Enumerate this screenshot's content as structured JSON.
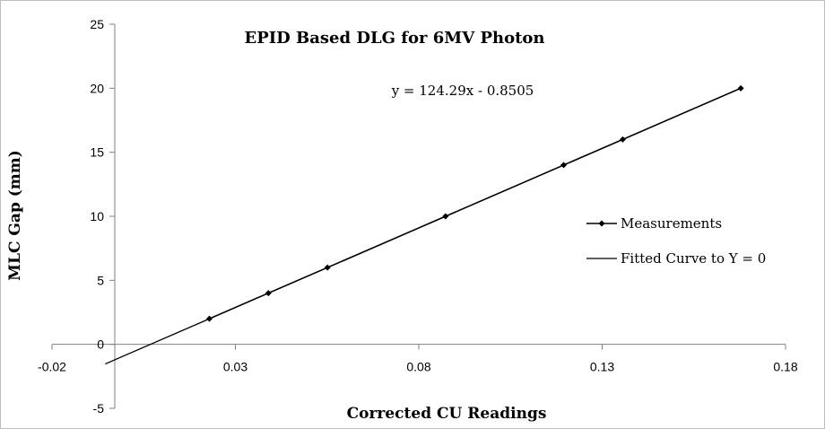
{
  "chart_data": {
    "type": "scatter",
    "title": "EPID Based DLG for 6MV Photon",
    "xlabel": "Corrected CU Readings",
    "ylabel": "MLC Gap (mm)",
    "xlim": [
      -0.02,
      0.18
    ],
    "ylim": [
      -5,
      25
    ],
    "x_ticks": [
      "-0.02",
      "0.03",
      "0.08",
      "0.13",
      "0.18"
    ],
    "y_ticks": [
      "-5",
      "0",
      "5",
      "10",
      "15",
      "20",
      "25"
    ],
    "grid": false,
    "legend_position": "right",
    "equation": "y = 124.29x - 0.8505",
    "series": [
      {
        "name": "Measurements",
        "style": "line-with-markers",
        "color": "#000000",
        "x": [
          0.0229,
          0.039,
          0.0551,
          0.0873,
          0.1195,
          0.1356,
          0.1678
        ],
        "y": [
          2,
          4,
          6,
          10,
          14,
          16,
          20
        ]
      },
      {
        "name": "Fitted Curve to Y = 0",
        "style": "line",
        "color": "#000000",
        "slope": 124.29,
        "intercept": -0.8505,
        "x": [
          -0.0055,
          0.1678
        ],
        "y": [
          -1.534,
          20.005
        ]
      }
    ]
  }
}
